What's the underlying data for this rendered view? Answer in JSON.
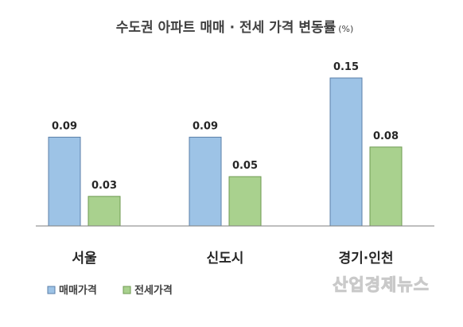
{
  "chart_data": {
    "type": "bar",
    "title": "수도권 아파트 매매 · 전세 가격 변동률",
    "title_unit": "(%)",
    "categories": [
      "서울",
      "신도시",
      "경기·인천"
    ],
    "series": [
      {
        "name": "매매가격",
        "values": [
          0.09,
          0.09,
          0.15
        ],
        "color": "#9DC3E6",
        "stroke": "#5B7FA8"
      },
      {
        "name": "전세가격",
        "values": [
          0.03,
          0.05,
          0.08
        ],
        "color": "#A9D18E",
        "stroke": "#6F9A52"
      }
    ],
    "value_format_decimals": 2,
    "ylim": [
      0,
      0.15
    ],
    "grid": false,
    "legend_position": "bottom-left"
  },
  "watermark": "산업경제뉴스"
}
